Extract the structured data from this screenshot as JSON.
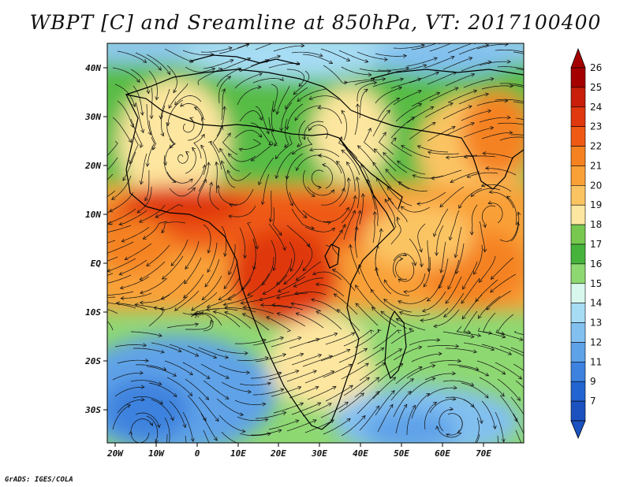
{
  "title": "WBPT [C] and Sreamline at 850hPa, VT: 2017100400",
  "credit": "GrADS: IGES/COLA",
  "lat_labels": [
    "40N",
    "30N",
    "20N",
    "10N",
    "EQ",
    "10S",
    "20S",
    "30S"
  ],
  "lon_labels": [
    "20W",
    "10W",
    "0",
    "10E",
    "20E",
    "30E",
    "40E",
    "50E",
    "60E",
    "70E"
  ],
  "colorbar": {
    "labels": [
      "26",
      "25",
      "24",
      "23",
      "22",
      "21",
      "20",
      "19",
      "18",
      "17",
      "16",
      "15",
      "14",
      "13",
      "12",
      "11",
      "9",
      "7"
    ],
    "colors": [
      "#a50000",
      "#c81e0a",
      "#e0380f",
      "#ee5a14",
      "#f58220",
      "#f9a037",
      "#fbc463",
      "#fde69f",
      "#78c850",
      "#46b43c",
      "#8ed872",
      "#d8f8ee",
      "#a6dcf4",
      "#82c0f0",
      "#5ea2e8",
      "#3c82de",
      "#2264d0",
      "#1c52c0"
    ]
  },
  "map": {
    "lat_range": [
      -36,
      45
    ],
    "lon_range": [
      -21,
      79
    ]
  }
}
